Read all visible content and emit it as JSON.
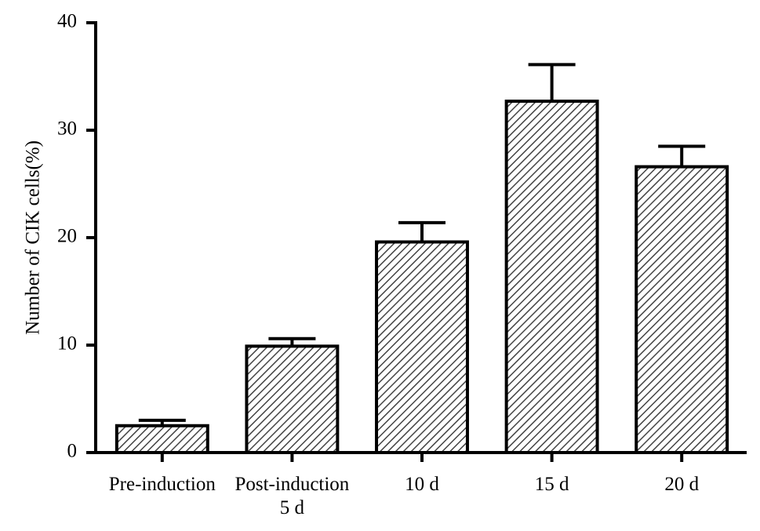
{
  "chart_data": {
    "type": "bar",
    "y_label": "Number of CIK cells(%)",
    "categories": [
      "Pre-induction",
      "Post-induction\n5 d",
      "10 d",
      "15 d",
      "20 d"
    ],
    "values": [
      2.5,
      9.9,
      19.6,
      32.7,
      26.6
    ],
    "errors": [
      0.5,
      0.7,
      1.8,
      3.4,
      1.9
    ],
    "color": "#000000",
    "ylim": [
      0,
      40
    ],
    "yticks": [
      0,
      10,
      20,
      30,
      40
    ]
  }
}
